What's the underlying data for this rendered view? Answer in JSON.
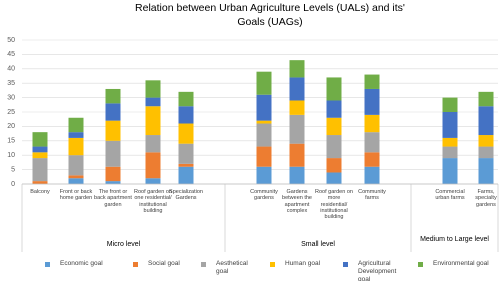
{
  "chart_data": {
    "type": "stacked_bar",
    "title": "Relation between Urban Agriculture Levels (UALs) and its' Goals (UAGs)",
    "categories": [
      "Balcony",
      "Front or back home garden",
      "The front or back apartment garden",
      "Roof garden on one residential/ institutional building",
      "Specialization Gardens",
      "Community gardens",
      "Gardens between the apartment complex",
      "Roof garden on more residential/ institutional building",
      "Community farms",
      "Commercial urban farms",
      "Farms, specialty gardens"
    ],
    "groups": [
      {
        "name": "Micro level",
        "size": 5
      },
      {
        "name": "Small level",
        "size": 4
      },
      {
        "name": "Medium to Large level",
        "size": 2
      }
    ],
    "series": [
      {
        "name": "Economic goal",
        "color": "#5b9bd5",
        "values": [
          0,
          2,
          1,
          2,
          6,
          6,
          6,
          4,
          6,
          9,
          9
        ]
      },
      {
        "name": "Social goal",
        "color": "#ed7d31",
        "values": [
          1,
          1,
          5,
          9,
          1,
          7,
          8,
          5,
          5,
          0,
          0
        ]
      },
      {
        "name": "Aesthetical goal",
        "color": "#a5a5a5",
        "values": [
          8,
          7,
          9,
          6,
          7,
          8,
          10,
          8,
          7,
          4,
          4
        ]
      },
      {
        "name": "Human goal",
        "color": "#ffc000",
        "values": [
          2,
          6,
          7,
          10,
          7,
          1,
          5,
          6,
          6,
          3,
          4
        ]
      },
      {
        "name": "Agricultural Development goal",
        "color": "#4472c4",
        "values": [
          2,
          2,
          6,
          3,
          6,
          9,
          8,
          6,
          9,
          9,
          10
        ]
      },
      {
        "name": "Environmental goal",
        "color": "#70ad47",
        "values": [
          5,
          5,
          5,
          6,
          5,
          8,
          6,
          8,
          5,
          5,
          5
        ]
      }
    ],
    "ylim": [
      0,
      50
    ],
    "yticks": [
      0,
      5,
      10,
      15,
      20,
      25,
      30,
      35,
      40,
      45,
      50
    ],
    "grid": true
  }
}
